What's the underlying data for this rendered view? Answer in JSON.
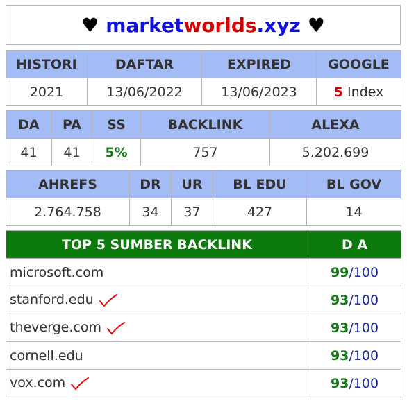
{
  "header": {
    "heart_left": "♥",
    "domain_part1": "market",
    "domain_part2": "worlds",
    "domain_part3": ".xyz",
    "heart_right": "♥"
  },
  "table1": {
    "headers": [
      "HISTORI",
      "DAFTAR",
      "EXPIRED",
      "GOOGLE"
    ],
    "histori": "2021",
    "daftar": "13/06/2022",
    "expired": "13/06/2023",
    "google_count": "5",
    "google_label": "Index"
  },
  "table2": {
    "headers": [
      "DA",
      "PA",
      "SS",
      "BACKLINK",
      "ALEXA"
    ],
    "da": "41",
    "pa": "41",
    "ss": "5%",
    "backlink": "757",
    "alexa": "5.202.699"
  },
  "table3": {
    "headers": [
      "AHREFS",
      "DR",
      "UR",
      "BL EDU",
      "BL GOV"
    ],
    "ahrefs": "2.764.758",
    "dr": "34",
    "ur": "37",
    "bl_edu": "427",
    "bl_gov": "14"
  },
  "table4": {
    "header_source": "TOP 5 SUMBER BACKLINK",
    "header_da": "D A",
    "rows": [
      {
        "site": "microsoft.com",
        "score": "99",
        "max": "/100",
        "checked": false
      },
      {
        "site": "stanford.edu",
        "score": "93",
        "max": "/100",
        "checked": true
      },
      {
        "site": "theverge.com",
        "score": "93",
        "max": "/100",
        "checked": true
      },
      {
        "site": "cornell.edu",
        "score": "93",
        "max": "/100",
        "checked": false
      },
      {
        "site": "vox.com",
        "score": "93",
        "max": "/100",
        "checked": true
      }
    ]
  },
  "colors": {
    "header_blue": "#a4bcf5",
    "header_green": "#0c7a0c",
    "domain_blue": "#1010dd",
    "domain_red": "#d40000",
    "score_green": "#1a7a1a",
    "check_red": "#e01010"
  }
}
